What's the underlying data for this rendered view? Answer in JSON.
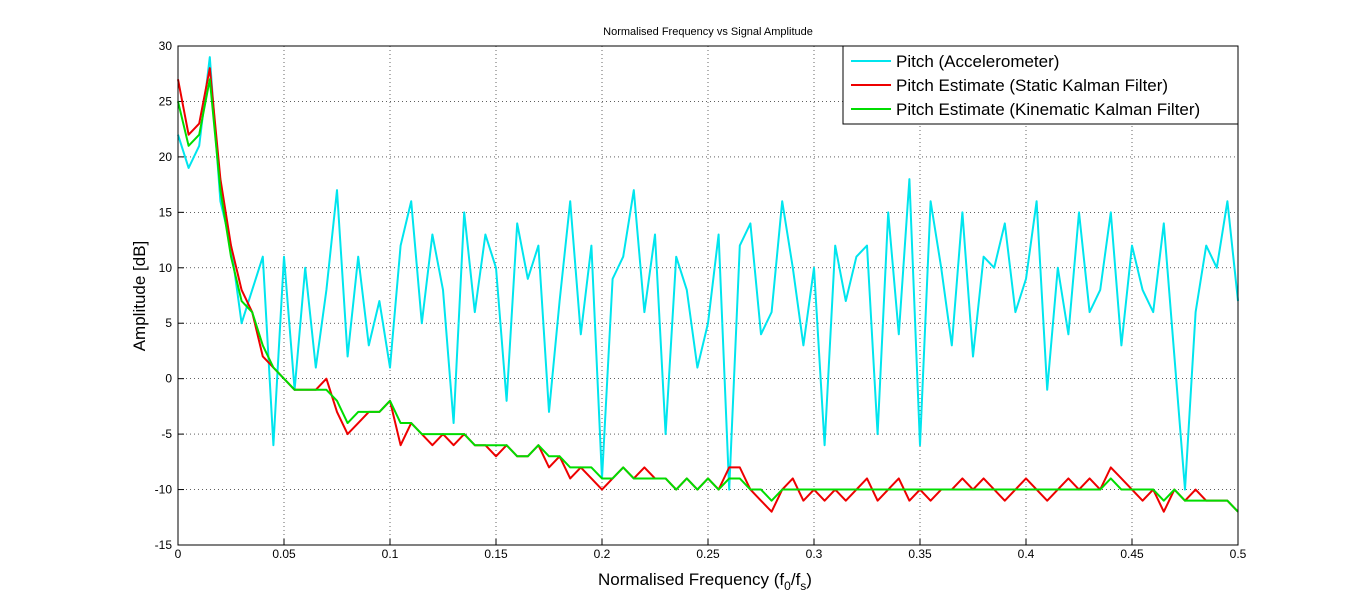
{
  "chart_data": {
    "type": "line",
    "title": "Normalised Frequency vs Signal Amplitude",
    "xlabel": [
      "Normalised Frequency (f",
      "0",
      "/f",
      "s",
      ")"
    ],
    "ylabel": "Amplitude [dB]",
    "x": [
      0,
      0.005,
      0.01,
      0.015,
      0.02,
      0.025,
      0.03,
      0.035,
      0.04,
      0.045,
      0.05,
      0.055,
      0.06,
      0.065,
      0.07,
      0.075,
      0.08,
      0.085,
      0.09,
      0.095,
      0.1,
      0.105,
      0.11,
      0.115,
      0.12,
      0.125,
      0.13,
      0.135,
      0.14,
      0.145,
      0.15,
      0.155,
      0.16,
      0.165,
      0.17,
      0.175,
      0.18,
      0.185,
      0.19,
      0.195,
      0.2,
      0.205,
      0.21,
      0.215,
      0.22,
      0.225,
      0.23,
      0.235,
      0.24,
      0.245,
      0.25,
      0.255,
      0.26,
      0.265,
      0.27,
      0.275,
      0.28,
      0.285,
      0.29,
      0.295,
      0.3,
      0.305,
      0.31,
      0.315,
      0.32,
      0.325,
      0.33,
      0.335,
      0.34,
      0.345,
      0.35,
      0.355,
      0.36,
      0.365,
      0.37,
      0.375,
      0.38,
      0.385,
      0.39,
      0.395,
      0.4,
      0.405,
      0.41,
      0.415,
      0.42,
      0.425,
      0.43,
      0.435,
      0.44,
      0.445,
      0.45,
      0.455,
      0.46,
      0.465,
      0.47,
      0.475,
      0.48,
      0.485,
      0.49,
      0.495,
      0.5
    ],
    "series": [
      {
        "name": "Pitch (Accelerometer)",
        "color": "#00e5ee",
        "values": [
          22,
          19,
          21,
          29,
          16,
          12,
          5,
          8,
          11,
          -6,
          11,
          -1,
          10,
          1,
          8,
          17,
          2,
          11,
          3,
          7,
          1,
          12,
          16,
          5,
          13,
          8,
          -4,
          15,
          6,
          13,
          10,
          -2,
          14,
          9,
          12,
          -3,
          7,
          16,
          4,
          12,
          -9,
          9,
          11,
          17,
          6,
          13,
          -5,
          11,
          8,
          1,
          5,
          13,
          -10,
          12,
          14,
          4,
          6,
          16,
          10,
          3,
          10,
          -6,
          12,
          7,
          11,
          12,
          -5,
          15,
          4,
          18,
          -6,
          16,
          10,
          3,
          15,
          2,
          11,
          10,
          14,
          6,
          9,
          16,
          -1,
          10,
          4,
          15,
          6,
          8,
          15,
          3,
          12,
          8,
          6,
          14,
          2,
          -10,
          6,
          12,
          10,
          16,
          7
        ]
      },
      {
        "name": "Pitch Estimate (Static Kalman Filter)",
        "color": "#ee0000",
        "values": [
          27,
          22,
          23,
          28,
          18,
          12,
          8,
          6,
          2,
          1,
          0,
          -1,
          -1,
          -1,
          0,
          -3,
          -5,
          -4,
          -3,
          -3,
          -2,
          -6,
          -4,
          -5,
          -6,
          -5,
          -6,
          -5,
          -6,
          -6,
          -7,
          -6,
          -7,
          -7,
          -6,
          -8,
          -7,
          -9,
          -8,
          -9,
          -10,
          -9,
          -8,
          -9,
          -8,
          -9,
          -9,
          -10,
          -9,
          -10,
          -9,
          -10,
          -8,
          -8,
          -10,
          -11,
          -12,
          -10,
          -9,
          -11,
          -10,
          -11,
          -10,
          -11,
          -10,
          -9,
          -11,
          -10,
          -9,
          -11,
          -10,
          -11,
          -10,
          -10,
          -9,
          -10,
          -9,
          -10,
          -11,
          -10,
          -9,
          -10,
          -11,
          -10,
          -9,
          -10,
          -9,
          -10,
          -8,
          -9,
          -10,
          -11,
          -10,
          -12,
          -10,
          -11,
          -10,
          -11,
          -11,
          -11,
          -12
        ]
      },
      {
        "name": "Pitch Estimate (Kinematic Kalman Filter)",
        "color": "#00dd00",
        "values": [
          25,
          21,
          22,
          27,
          17,
          11,
          7,
          6,
          3,
          1,
          0,
          -1,
          -1,
          -1,
          -1,
          -2,
          -4,
          -3,
          -3,
          -3,
          -2,
          -4,
          -4,
          -5,
          -5,
          -5,
          -5,
          -5,
          -6,
          -6,
          -6,
          -6,
          -7,
          -7,
          -6,
          -7,
          -7,
          -8,
          -8,
          -8,
          -9,
          -9,
          -8,
          -9,
          -9,
          -9,
          -9,
          -10,
          -9,
          -10,
          -9,
          -10,
          -9,
          -9,
          -10,
          -10,
          -11,
          -10,
          -10,
          -10,
          -10,
          -10,
          -10,
          -10,
          -10,
          -10,
          -10,
          -10,
          -10,
          -10,
          -10,
          -10,
          -10,
          -10,
          -10,
          -10,
          -10,
          -10,
          -10,
          -10,
          -10,
          -10,
          -10,
          -10,
          -10,
          -10,
          -10,
          -10,
          -9,
          -10,
          -10,
          -10,
          -10,
          -11,
          -10,
          -11,
          -11,
          -11,
          -11,
          -11,
          -12
        ]
      }
    ],
    "xlim": [
      0,
      0.5
    ],
    "ylim": [
      -15,
      30
    ],
    "xticks": [
      0,
      0.05,
      0.1,
      0.15,
      0.2,
      0.25,
      0.3,
      0.35,
      0.4,
      0.45,
      0.5
    ],
    "yticks": [
      -15,
      -10,
      -5,
      0,
      5,
      10,
      15,
      20,
      25,
      30
    ],
    "grid": true,
    "legend": "upper right"
  }
}
